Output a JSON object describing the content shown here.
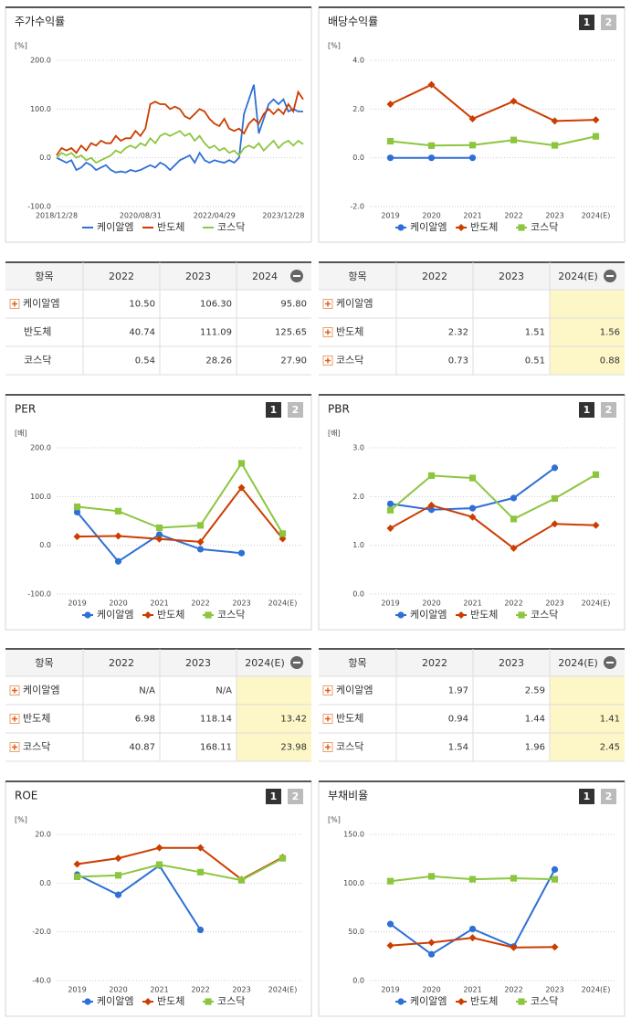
{
  "chart_data": [
    {
      "type": "line",
      "title": "주가수익률",
      "unit": "[%]",
      "categories": [
        "2018/12/28",
        null,
        null,
        null,
        null,
        null,
        null,
        null,
        null,
        null,
        null,
        null,
        null,
        null,
        null,
        null,
        null,
        "2020/08/31",
        null,
        null,
        null,
        null,
        null,
        null,
        null,
        null,
        null,
        null,
        null,
        null,
        null,
        null,
        "2022/04/29",
        null,
        null,
        null,
        null,
        null,
        null,
        null,
        null,
        null,
        null,
        null,
        null,
        null,
        "2023/12/28",
        null,
        null,
        null,
        null
      ],
      "ylim": [
        -100,
        200
      ],
      "yticks": [
        {
          "value": -100,
          "label": "-100.0"
        },
        {
          "value": 0,
          "label": "0.0"
        },
        {
          "value": 100,
          "label": "100.0"
        },
        {
          "value": 200,
          "label": "200.0"
        }
      ],
      "markers": false,
      "series": [
        {
          "name": "케이알엠",
          "color": "#2f6fd6",
          "values": [
            0,
            -5,
            -10,
            -5,
            -25,
            -20,
            -10,
            -15,
            -25,
            -20,
            -15,
            -25,
            -30,
            -28,
            -30,
            -25,
            -28,
            -25,
            -20,
            -15,
            -20,
            -10,
            -15,
            -25,
            -15,
            -5,
            0,
            5,
            -10,
            10,
            -5,
            -10,
            -5,
            -8,
            -10,
            -5,
            -10,
            0,
            90,
            120,
            150,
            50,
            80,
            110,
            120,
            110,
            120,
            95,
            100,
            95,
            95
          ]
        },
        {
          "name": "반도체",
          "color": "#cc3d00",
          "values": [
            5,
            20,
            15,
            20,
            10,
            25,
            15,
            30,
            25,
            35,
            30,
            30,
            45,
            35,
            40,
            40,
            55,
            45,
            60,
            110,
            115,
            110,
            110,
            100,
            105,
            100,
            85,
            80,
            90,
            100,
            95,
            80,
            70,
            65,
            80,
            60,
            55,
            60,
            50,
            70,
            80,
            70,
            90,
            100,
            90,
            100,
            90,
            110,
            95,
            135,
            120
          ]
        },
        {
          "name": "코스닥",
          "color": "#8cc63f",
          "values": [
            0,
            10,
            5,
            10,
            0,
            5,
            -5,
            0,
            -10,
            -5,
            0,
            5,
            15,
            10,
            20,
            25,
            20,
            30,
            25,
            40,
            30,
            45,
            50,
            45,
            50,
            55,
            45,
            50,
            35,
            45,
            30,
            20,
            25,
            15,
            20,
            10,
            15,
            5,
            20,
            25,
            20,
            30,
            15,
            25,
            35,
            20,
            30,
            35,
            25,
            35,
            28
          ]
        }
      ]
    },
    {
      "type": "line",
      "title": "배당수익률",
      "unit": "[%]",
      "buttons": [
        "1",
        "2"
      ],
      "categories": [
        "2019",
        "2020",
        "2021",
        "2022",
        "2023",
        "2024(E)"
      ],
      "ylim": [
        -2,
        4
      ],
      "yticks": [
        {
          "value": -2,
          "label": "-2.0"
        },
        {
          "value": 0,
          "label": "0.0"
        },
        {
          "value": 2,
          "label": "2.0"
        },
        {
          "value": 4,
          "label": "4.0"
        }
      ],
      "markers": true,
      "series": [
        {
          "name": "케이알엠",
          "color": "#2f6fd6",
          "values": [
            0,
            0,
            0,
            null,
            null,
            null
          ]
        },
        {
          "name": "반도체",
          "color": "#cc3d00",
          "values": [
            2.2,
            3.0,
            1.6,
            2.32,
            1.51,
            1.56
          ]
        },
        {
          "name": "코스닥",
          "color": "#8cc63f",
          "values": [
            0.68,
            0.5,
            0.52,
            0.73,
            0.51,
            0.88
          ]
        }
      ]
    },
    {
      "type": "line",
      "title": "PER",
      "unit": "[배]",
      "buttons": [
        "1",
        "2"
      ],
      "categories": [
        "2019",
        "2020",
        "2021",
        "2022",
        "2023",
        "2024(E)"
      ],
      "ylim": [
        -100,
        200
      ],
      "yticks": [
        {
          "value": -100,
          "label": "-100.0"
        },
        {
          "value": 0,
          "label": "0.0"
        },
        {
          "value": 100,
          "label": "100.0"
        },
        {
          "value": 200,
          "label": "200.0"
        }
      ],
      "markers": true,
      "series": [
        {
          "name": "케이알엠",
          "color": "#2f6fd6",
          "values": [
            68,
            -33,
            22,
            -8,
            -16,
            null
          ]
        },
        {
          "name": "반도체",
          "color": "#cc3d00",
          "values": [
            18,
            19,
            13,
            6.98,
            118.14,
            13.42
          ]
        },
        {
          "name": "코스닥",
          "color": "#8cc63f",
          "values": [
            79,
            70,
            36,
            40.87,
            168.11,
            23.98
          ]
        }
      ]
    },
    {
      "type": "line",
      "title": "PBR",
      "unit": "[배]",
      "buttons": [
        "1",
        "2"
      ],
      "categories": [
        "2019",
        "2020",
        "2021",
        "2022",
        "2023",
        "2024(E)"
      ],
      "ylim": [
        0,
        3
      ],
      "yticks": [
        {
          "value": 0,
          "label": "0.0"
        },
        {
          "value": 1,
          "label": "1.0"
        },
        {
          "value": 2,
          "label": "2.0"
        },
        {
          "value": 3,
          "label": "3.0"
        }
      ],
      "markers": true,
      "series": [
        {
          "name": "케이알엠",
          "color": "#2f6fd6",
          "values": [
            1.85,
            1.73,
            1.76,
            1.97,
            2.59,
            null
          ]
        },
        {
          "name": "반도체",
          "color": "#cc3d00",
          "values": [
            1.35,
            1.82,
            1.58,
            0.94,
            1.44,
            1.41
          ]
        },
        {
          "name": "코스닥",
          "color": "#8cc63f",
          "values": [
            1.72,
            2.43,
            2.38,
            1.54,
            1.96,
            2.45
          ]
        }
      ]
    },
    {
      "type": "line",
      "title": "ROE",
      "unit": "[%]",
      "buttons": [
        "1",
        "2"
      ],
      "categories": [
        "2019",
        "2020",
        "2021",
        "2022",
        "2023",
        "2024(E)"
      ],
      "ylim": [
        -40,
        20
      ],
      "yticks": [
        {
          "value": -40,
          "label": "-40.0"
        },
        {
          "value": -20,
          "label": "-20.0"
        },
        {
          "value": 0,
          "label": "0.0"
        },
        {
          "value": 20,
          "label": "20.0"
        }
      ],
      "markers": true,
      "series": [
        {
          "name": "케이알엠",
          "color": "#2f6fd6",
          "values": [
            3.5,
            -4.8,
            7.2,
            -19.2,
            null,
            null
          ]
        },
        {
          "name": "반도체",
          "color": "#cc3d00",
          "values": [
            7.8,
            10.2,
            14.5,
            14.5,
            1.5,
            10.6
          ]
        },
        {
          "name": "코스닥",
          "color": "#8cc63f",
          "values": [
            2.6,
            3.2,
            7.6,
            4.5,
            1.2,
            10.2
          ]
        }
      ]
    },
    {
      "type": "line",
      "title": "부채비율",
      "unit": "[%]",
      "buttons": [
        "1",
        "2"
      ],
      "categories": [
        "2019",
        "2020",
        "2021",
        "2022",
        "2023",
        "2024(E)"
      ],
      "ylim": [
        0,
        150
      ],
      "yticks": [
        {
          "value": 0,
          "label": "0.0"
        },
        {
          "value": 50,
          "label": "50.0"
        },
        {
          "value": 100,
          "label": "100.0"
        },
        {
          "value": 150,
          "label": "150.0"
        }
      ],
      "markers": true,
      "series": [
        {
          "name": "케이알엠",
          "color": "#2f6fd6",
          "values": [
            58,
            27,
            53,
            35,
            114,
            null
          ]
        },
        {
          "name": "반도체",
          "color": "#cc3d00",
          "values": [
            36,
            39,
            44,
            34,
            34.5,
            null
          ]
        },
        {
          "name": "코스닥",
          "color": "#8cc63f",
          "values": [
            102,
            107,
            104,
            105,
            104,
            null
          ]
        }
      ]
    }
  ],
  "tables": [
    {
      "header": [
        "항목",
        "2022",
        "2023",
        "2024"
      ],
      "highlight_last": false,
      "rows": [
        {
          "name": "케이알엠",
          "expandable": true,
          "values": [
            "10.50",
            "106.30",
            "95.80"
          ]
        },
        {
          "name": "반도체",
          "expandable": false,
          "values": [
            "40.74",
            "111.09",
            "125.65"
          ]
        },
        {
          "name": "코스닥",
          "expandable": false,
          "values": [
            "0.54",
            "28.26",
            "27.90"
          ]
        }
      ]
    },
    {
      "header": [
        "항목",
        "2022",
        "2023",
        "2024(E)"
      ],
      "highlight_last": true,
      "rows": [
        {
          "name": "케이알엠",
          "expandable": true,
          "values": [
            null,
            null,
            null
          ]
        },
        {
          "name": "반도체",
          "expandable": true,
          "values": [
            "2.32",
            "1.51",
            "1.56"
          ]
        },
        {
          "name": "코스닥",
          "expandable": true,
          "values": [
            "0.73",
            "0.51",
            "0.88"
          ]
        }
      ]
    },
    {
      "header": [
        "항목",
        "2022",
        "2023",
        "2024(E)"
      ],
      "highlight_last": true,
      "rows": [
        {
          "name": "케이알엠",
          "expandable": true,
          "values": [
            "N/A",
            "N/A",
            null
          ]
        },
        {
          "name": "반도체",
          "expandable": true,
          "values": [
            "6.98",
            "118.14",
            "13.42"
          ]
        },
        {
          "name": "코스닥",
          "expandable": true,
          "values": [
            "40.87",
            "168.11",
            "23.98"
          ]
        }
      ]
    },
    {
      "header": [
        "항목",
        "2022",
        "2023",
        "2024(E)"
      ],
      "highlight_last": true,
      "rows": [
        {
          "name": "케이알엠",
          "expandable": true,
          "values": [
            "1.97",
            "2.59",
            null
          ]
        },
        {
          "name": "반도체",
          "expandable": true,
          "values": [
            "0.94",
            "1.44",
            "1.41"
          ]
        },
        {
          "name": "코스닥",
          "expandable": true,
          "values": [
            "1.54",
            "1.96",
            "2.45"
          ]
        }
      ]
    }
  ]
}
